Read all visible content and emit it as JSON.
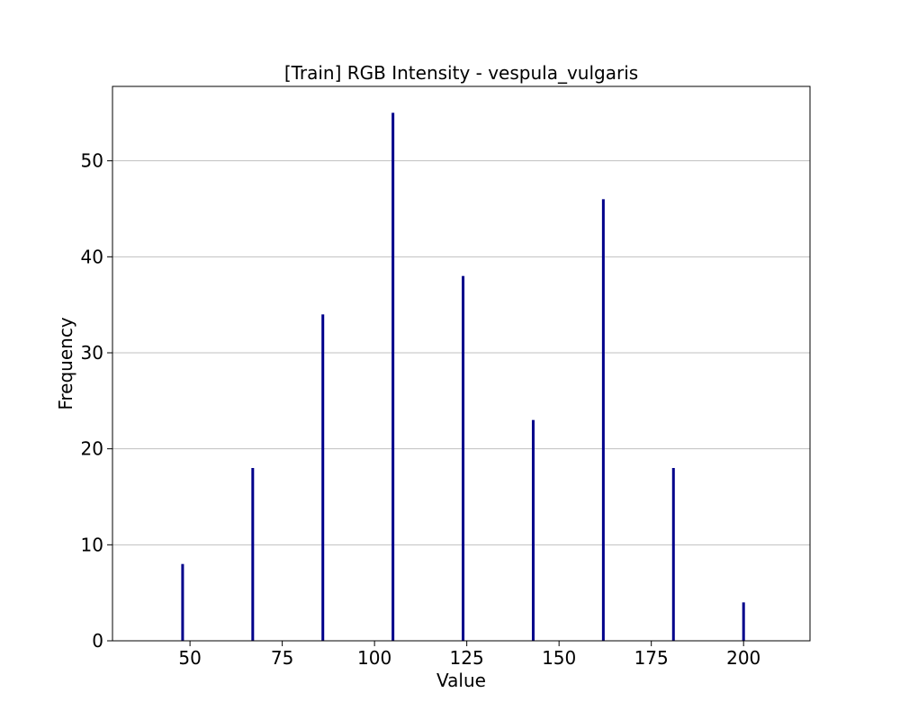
{
  "chart_data": {
    "type": "bar",
    "title": "[Train] RGB Intensity - vespula_vulgaris",
    "xlabel": "Value",
    "ylabel": "Frequency",
    "x": [
      48,
      67,
      86,
      105,
      124,
      143,
      162,
      181,
      200
    ],
    "values": [
      8,
      18,
      34,
      55,
      38,
      23,
      46,
      18,
      4
    ],
    "xlim": [
      29,
      218
    ],
    "ylim": [
      0,
      57.75
    ],
    "xticks": [
      50,
      75,
      100,
      125,
      150,
      175,
      200
    ],
    "yticks": [
      0,
      10,
      20,
      30,
      40,
      50
    ],
    "grid": "y",
    "bar_color": "#00008b",
    "grid_color": "#c0c0c0"
  }
}
